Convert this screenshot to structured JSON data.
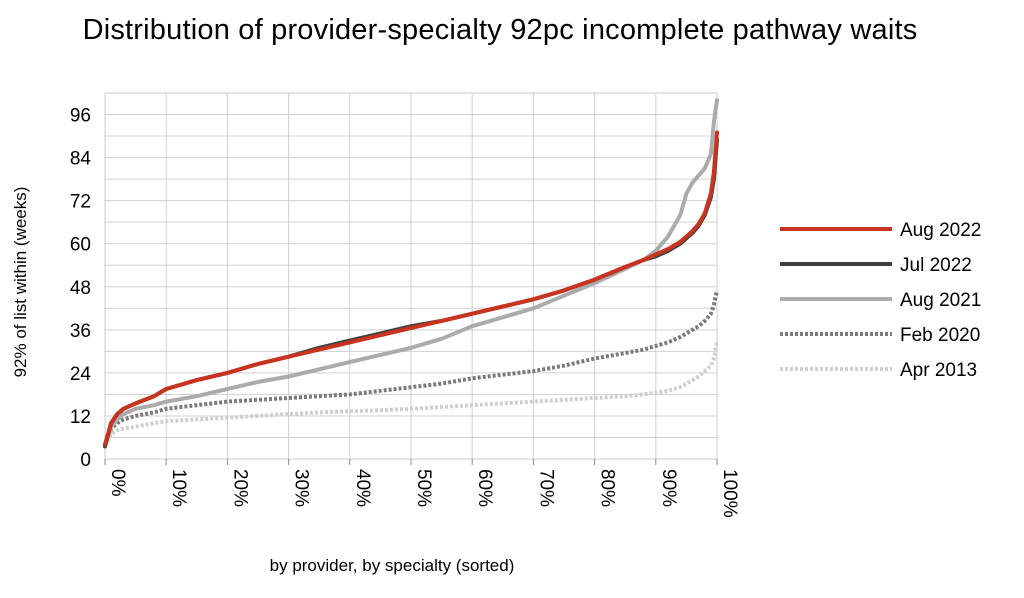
{
  "chart_data": {
    "type": "line",
    "title": "Distribution of provider-specialty 92pc incomplete pathway waits",
    "xlabel": "by provider, by specialty (sorted)",
    "ylabel": "92% of list within (weeks)",
    "xlim": [
      0,
      100
    ],
    "ylim": [
      0,
      102
    ],
    "grid": true,
    "legend_position": "right",
    "x_ticks": [
      "0%",
      "10%",
      "20%",
      "30%",
      "40%",
      "50%",
      "60%",
      "70%",
      "80%",
      "90%",
      "100%"
    ],
    "y_ticks": [
      0,
      12,
      24,
      36,
      48,
      60,
      72,
      84,
      96
    ],
    "x": [
      0,
      1,
      2,
      3,
      5,
      8,
      10,
      15,
      20,
      25,
      30,
      35,
      40,
      45,
      50,
      55,
      60,
      65,
      70,
      75,
      80,
      85,
      88,
      90,
      92,
      94,
      95,
      96,
      97,
      98,
      99,
      99.5,
      100
    ],
    "series": [
      {
        "name": "Aug 2022",
        "color": "#c8341f",
        "style": "solid",
        "values": [
          4,
          10,
          12.5,
          14,
          15.5,
          17.5,
          19.5,
          22,
          24,
          26.5,
          28.5,
          30.5,
          32.5,
          34.5,
          36.5,
          38.5,
          40.5,
          42.5,
          44.5,
          47,
          50,
          53.5,
          55.5,
          57,
          58.5,
          60.5,
          62,
          63.5,
          65.5,
          68.5,
          74,
          80,
          91
        ]
      },
      {
        "name": "Jul 2022",
        "color": "#404040",
        "style": "solid",
        "values": [
          3.5,
          10,
          12.5,
          14,
          15.5,
          17.5,
          19.5,
          22,
          24,
          26.5,
          28.5,
          31,
          33,
          35,
          37,
          38.5,
          40.5,
          42.5,
          44.5,
          47,
          50,
          53.5,
          55.5,
          56.5,
          58,
          60,
          61.5,
          63,
          65,
          68,
          73,
          78,
          89
        ]
      },
      {
        "name": "Aug 2021",
        "color": "#ababab",
        "style": "solid",
        "values": [
          4,
          9,
          11,
          12.5,
          14,
          15,
          16,
          17.5,
          19.5,
          21.5,
          23,
          25,
          27,
          29,
          31,
          33.5,
          37,
          39.5,
          42,
          45.5,
          49,
          53,
          55.5,
          58,
          62,
          68,
          74,
          77,
          79,
          81,
          85,
          94,
          100
        ]
      },
      {
        "name": "Feb 2020",
        "color": "#7a7a7a",
        "style": "dotted",
        "values": [
          4,
          8.5,
          10,
          11,
          12,
          13,
          14,
          15,
          16,
          16.5,
          17,
          17.5,
          18,
          19,
          20,
          21,
          22.5,
          23.5,
          24.5,
          26,
          28,
          29.5,
          30.5,
          31.5,
          32.5,
          34,
          35,
          36,
          37,
          38.5,
          40.5,
          43,
          47
        ]
      },
      {
        "name": "Apr 2013",
        "color": "#cfcfcf",
        "style": "dotted",
        "values": [
          3.5,
          7,
          8,
          8.5,
          9,
          10,
          10.5,
          11,
          11.5,
          12,
          12.5,
          13,
          13.3,
          13.6,
          14,
          14.5,
          15,
          15.5,
          16,
          16.5,
          17,
          17.5,
          18,
          18.5,
          19,
          20,
          21,
          22,
          23,
          24.5,
          26,
          28,
          33
        ]
      }
    ]
  }
}
